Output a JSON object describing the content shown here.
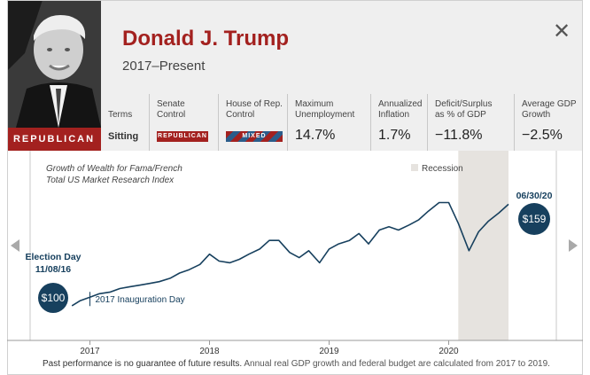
{
  "president": {
    "name": "Donald J. Trump",
    "years": "2017–Present",
    "party": "REPUBLICAN"
  },
  "stats": [
    {
      "label_lines": [
        "Terms"
      ],
      "value": "Sitting",
      "kind": "small"
    },
    {
      "label_lines": [
        "Senate",
        "Control"
      ],
      "value": "REPUBLICAN",
      "kind": "rep"
    },
    {
      "label_lines": [
        "House of Rep.",
        "Control"
      ],
      "value": "MIXED",
      "kind": "mixed"
    },
    {
      "label_lines": [
        "Maximum",
        "Unemployment"
      ],
      "value": "14.7%",
      "kind": "big"
    },
    {
      "label_lines": [
        "Annualized",
        "Inflation"
      ],
      "value": "1.7%",
      "kind": "big"
    },
    {
      "label_lines": [
        "Deficit/Surplus",
        "as % of GDP"
      ],
      "value": "−11.8%",
      "kind": "big"
    },
    {
      "label_lines": [
        "Average GDP",
        "Growth"
      ],
      "value": "−2.5%",
      "kind": "big"
    }
  ],
  "colors": {
    "republican": "#a3211f",
    "house_blue": "#2b5c8a",
    "line": "#17405e",
    "bubble": "#17405e",
    "recession": "#e6e3df"
  },
  "chart_data": {
    "type": "line",
    "title_lines": [
      "Growth of Wealth for Fama/French",
      "Total US Market Research Index"
    ],
    "legend": "Recession",
    "x_tick_labels": [
      "2017",
      "2018",
      "2019",
      "2020"
    ],
    "x_ticks": [
      2017.0,
      2018.0,
      2019.0,
      2020.0
    ],
    "xlim": [
      2016.5,
      2020.9
    ],
    "ylim": [
      85,
      185
    ],
    "recession": [
      2020.08,
      2020.5
    ],
    "series": [
      {
        "x": [
          2016.85,
          2016.92,
          2017.0,
          2017.08,
          2017.17,
          2017.25,
          2017.33,
          2017.42,
          2017.5,
          2017.58,
          2017.67,
          2017.75,
          2017.83,
          2017.92,
          2018.0,
          2018.08,
          2018.17,
          2018.25,
          2018.33,
          2018.42,
          2018.5,
          2018.58,
          2018.67,
          2018.75,
          2018.83,
          2018.92,
          2019.0,
          2019.08,
          2019.17,
          2019.25,
          2019.33,
          2019.42,
          2019.5,
          2019.58,
          2019.67,
          2019.75,
          2019.83,
          2019.92,
          2020.0,
          2020.08,
          2020.17,
          2020.25,
          2020.33,
          2020.42,
          2020.5
        ],
        "y": [
          100,
          103,
          105,
          107,
          108,
          110,
          111,
          112,
          113,
          114,
          116,
          119,
          121,
          124,
          130,
          126,
          125,
          127,
          130,
          133,
          138,
          138,
          131,
          128,
          132,
          125,
          133,
          136,
          138,
          142,
          136,
          144,
          146,
          144,
          147,
          150,
          155,
          160,
          160,
          148,
          132,
          143,
          149,
          154,
          159
        ]
      }
    ],
    "annotations": {
      "start_label_lines": [
        "Election Day",
        "11/08/16"
      ],
      "start_value": "$100",
      "inauguration": "2017 Inauguration Day",
      "end_date": "06/30/20",
      "end_value": "$159"
    }
  },
  "footnote": {
    "bold": "Past performance is no guarantee of future results.",
    "rest": " Annual real GDP growth and federal budget are calculated from 2017 to 2019."
  }
}
